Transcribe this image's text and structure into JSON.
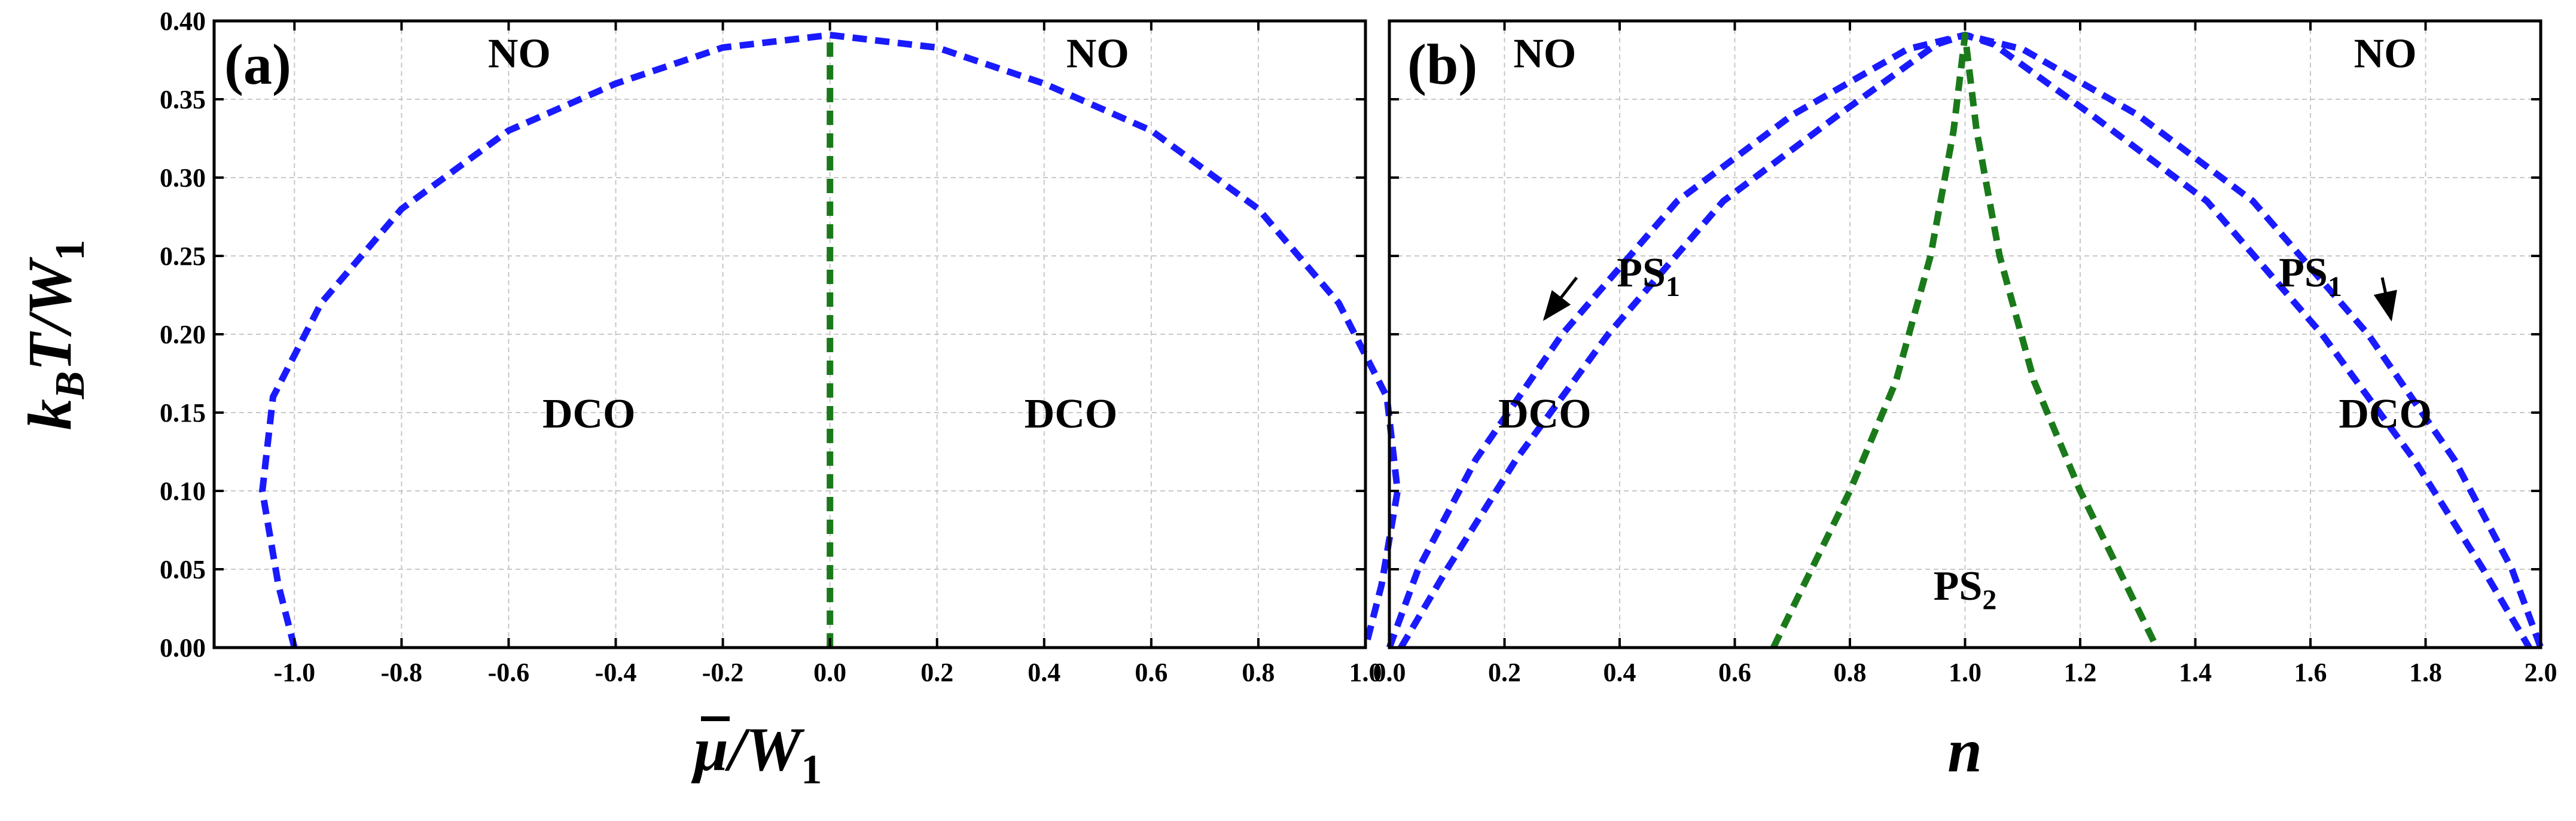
{
  "chart_data": [
    {
      "type": "line",
      "panel_label": "(a)",
      "xlabel": {
        "main": "μ",
        "sub": "1",
        "prefix": "/W"
      },
      "ylabel": {
        "k": "k",
        "kb": "B",
        "rest": "T/W",
        "sub": "1"
      },
      "xlim": [
        -1.15,
        1.0
      ],
      "ylim": [
        0.0,
        0.4
      ],
      "xticks": [
        -1.0,
        -0.8,
        -0.6,
        -0.4,
        -0.2,
        0.0,
        0.2,
        0.4,
        0.6,
        0.8,
        1.0
      ],
      "xtick_labels": [
        "-1.0",
        "-0.8",
        "-0.6",
        "-0.4",
        "-0.2",
        "0.0",
        "0.2",
        "0.4",
        "0.6",
        "0.8",
        "1.0"
      ],
      "yticks": [
        0.0,
        0.05,
        0.1,
        0.15,
        0.2,
        0.25,
        0.3,
        0.35,
        0.4
      ],
      "ytick_labels": [
        "0.00",
        "0.05",
        "0.10",
        "0.15",
        "0.20",
        "0.25",
        "0.30",
        "0.35",
        "0.40"
      ],
      "grid": true,
      "series": [
        {
          "name": "NO-DCO boundary",
          "color": "#1a1aff",
          "dash": true,
          "x": [
            -1.0,
            -1.03,
            -1.06,
            -1.04,
            -0.95,
            -0.8,
            -0.6,
            -0.4,
            -0.2,
            0.0,
            0.2,
            0.4,
            0.6,
            0.8,
            0.95,
            1.04,
            1.06,
            1.03,
            1.0
          ],
          "y": [
            0.0,
            0.04,
            0.1,
            0.16,
            0.22,
            0.28,
            0.33,
            0.36,
            0.383,
            0.391,
            0.383,
            0.36,
            0.33,
            0.28,
            0.22,
            0.16,
            0.1,
            0.04,
            0.0
          ]
        },
        {
          "name": "DCO-DCO boundary",
          "color": "#1a7a1a",
          "dash": true,
          "x": [
            0.0,
            0.0
          ],
          "y": [
            0.0,
            0.391
          ]
        }
      ],
      "annotations": [
        {
          "text": "NO",
          "x": -0.58,
          "y": 0.38
        },
        {
          "text": "NO",
          "x": 0.5,
          "y": 0.38
        },
        {
          "text": "DCO",
          "x": -0.45,
          "y": 0.15
        },
        {
          "text": "DCO",
          "x": 0.45,
          "y": 0.15
        }
      ]
    },
    {
      "type": "line",
      "panel_label": "(b)",
      "xlabel": {
        "main": "n"
      },
      "xlim": [
        0.0,
        2.0
      ],
      "ylim": [
        0.0,
        0.4
      ],
      "xticks": [
        0.0,
        0.2,
        0.4,
        0.6,
        0.8,
        1.0,
        1.2,
        1.4,
        1.6,
        1.8,
        2.0
      ],
      "xtick_labels": [
        "0.0",
        "0.2",
        "0.4",
        "0.6",
        "0.8",
        "1.0",
        "1.2",
        "1.4",
        "1.6",
        "1.8",
        "2.0"
      ],
      "yticks": [
        0.0,
        0.05,
        0.1,
        0.15,
        0.2,
        0.25,
        0.3,
        0.35,
        0.4
      ],
      "grid": true,
      "series": [
        {
          "name": "NO boundary outer",
          "color": "#1a1aff",
          "dash": true,
          "x": [
            0.0,
            0.05,
            0.15,
            0.3,
            0.5,
            0.7,
            0.9,
            1.0,
            1.1,
            1.3,
            1.5,
            1.7,
            1.85,
            1.95,
            2.0
          ],
          "y": [
            0.0,
            0.05,
            0.12,
            0.2,
            0.285,
            0.34,
            0.382,
            0.391,
            0.382,
            0.34,
            0.285,
            0.2,
            0.12,
            0.05,
            0.0
          ]
        },
        {
          "name": "NO boundary inner",
          "color": "#1a1aff",
          "dash": true,
          "x": [
            0.02,
            0.1,
            0.22,
            0.38,
            0.58,
            0.78,
            0.95,
            1.0,
            1.05,
            1.22,
            1.42,
            1.62,
            1.78,
            1.9,
            1.98
          ],
          "y": [
            0.0,
            0.05,
            0.12,
            0.2,
            0.285,
            0.34,
            0.385,
            0.391,
            0.385,
            0.34,
            0.285,
            0.2,
            0.12,
            0.05,
            0.0
          ]
        },
        {
          "name": "PS2 boundary",
          "color": "#1a7a1a",
          "dash": true,
          "x": [
            0.667,
            0.72,
            0.8,
            0.88,
            0.94,
            0.98,
            1.0,
            1.02,
            1.06,
            1.12,
            1.2,
            1.28,
            1.333
          ],
          "y": [
            0.0,
            0.04,
            0.1,
            0.17,
            0.25,
            0.33,
            0.391,
            0.33,
            0.25,
            0.17,
            0.1,
            0.04,
            0.0
          ]
        }
      ],
      "annotations": [
        {
          "text": "NO",
          "x": 0.27,
          "y": 0.38
        },
        {
          "text": "NO",
          "x": 1.73,
          "y": 0.38
        },
        {
          "text": "DCO",
          "x": 0.27,
          "y": 0.15
        },
        {
          "text": "DCO",
          "x": 1.73,
          "y": 0.15
        },
        {
          "text": "PS",
          "sub": "2",
          "x": 1.0,
          "y": 0.04
        },
        {
          "text": "PS",
          "sub": "1",
          "x": 0.45,
          "y": 0.24,
          "arrow_to": [
            0.27,
            0.21
          ]
        },
        {
          "text": "PS",
          "sub": "1",
          "x": 1.6,
          "y": 0.24,
          "arrow_to": [
            1.74,
            0.21
          ]
        }
      ]
    }
  ]
}
